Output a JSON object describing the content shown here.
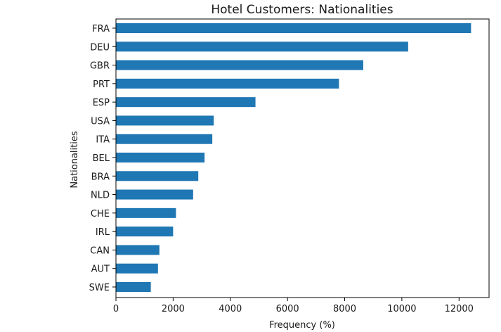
{
  "chart_data": {
    "type": "bar",
    "orientation": "horizontal",
    "title": "Hotel Customers: Nationalities",
    "xlabel": "Frequency (%)",
    "ylabel": "Nationalities",
    "categories": [
      "FRA",
      "DEU",
      "GBR",
      "PRT",
      "ESP",
      "USA",
      "ITA",
      "BEL",
      "BRA",
      "NLD",
      "CHE",
      "IRL",
      "CAN",
      "AUT",
      "SWE"
    ],
    "values": [
      12420,
      10220,
      8650,
      7800,
      4880,
      3420,
      3370,
      3100,
      2880,
      2700,
      2100,
      2000,
      1520,
      1470,
      1220
    ],
    "xlim": [
      0,
      13050
    ],
    "xticks": [
      0,
      2000,
      4000,
      6000,
      8000,
      10000,
      12000
    ],
    "xtick_labels": [
      "0",
      "2000",
      "4000",
      "6000",
      "8000",
      "10000",
      "12000"
    ],
    "bar_color": "#1f77b4",
    "grid": false,
    "legend": "none"
  }
}
